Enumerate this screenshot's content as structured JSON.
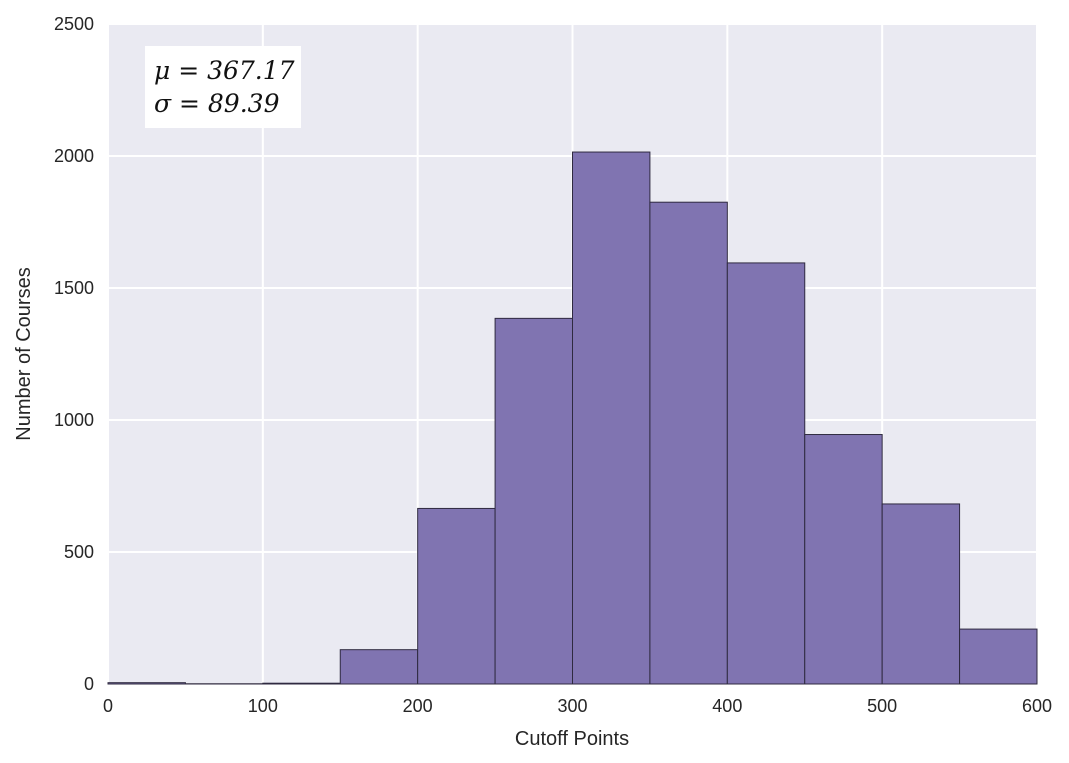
{
  "chart_data": {
    "type": "bar",
    "subtype": "histogram",
    "title": "",
    "xlabel": "Cutoff Points",
    "ylabel": "Number of Courses",
    "xlim": [
      0,
      600
    ],
    "ylim": [
      0,
      2500
    ],
    "xticks": [
      0,
      100,
      200,
      300,
      400,
      500,
      600
    ],
    "yticks": [
      0,
      500,
      1000,
      1500,
      2000,
      2500
    ],
    "bin_edges": [
      0,
      50,
      100,
      150,
      200,
      250,
      300,
      350,
      400,
      450,
      500,
      550,
      600
    ],
    "values": [
      5,
      1,
      3,
      130,
      665,
      1385,
      2015,
      1825,
      1595,
      945,
      682,
      208
    ],
    "grid": true,
    "legend": "none",
    "annotation": {
      "mu_line": "μ = 367.17",
      "sigma_line": "σ = 89.39",
      "placement": "top-left"
    },
    "colors": {
      "bar_fill": "#8074b1",
      "bar_edge": "#2f2a40",
      "plot_background": "#eaeaf2",
      "grid": "#ffffff"
    }
  }
}
